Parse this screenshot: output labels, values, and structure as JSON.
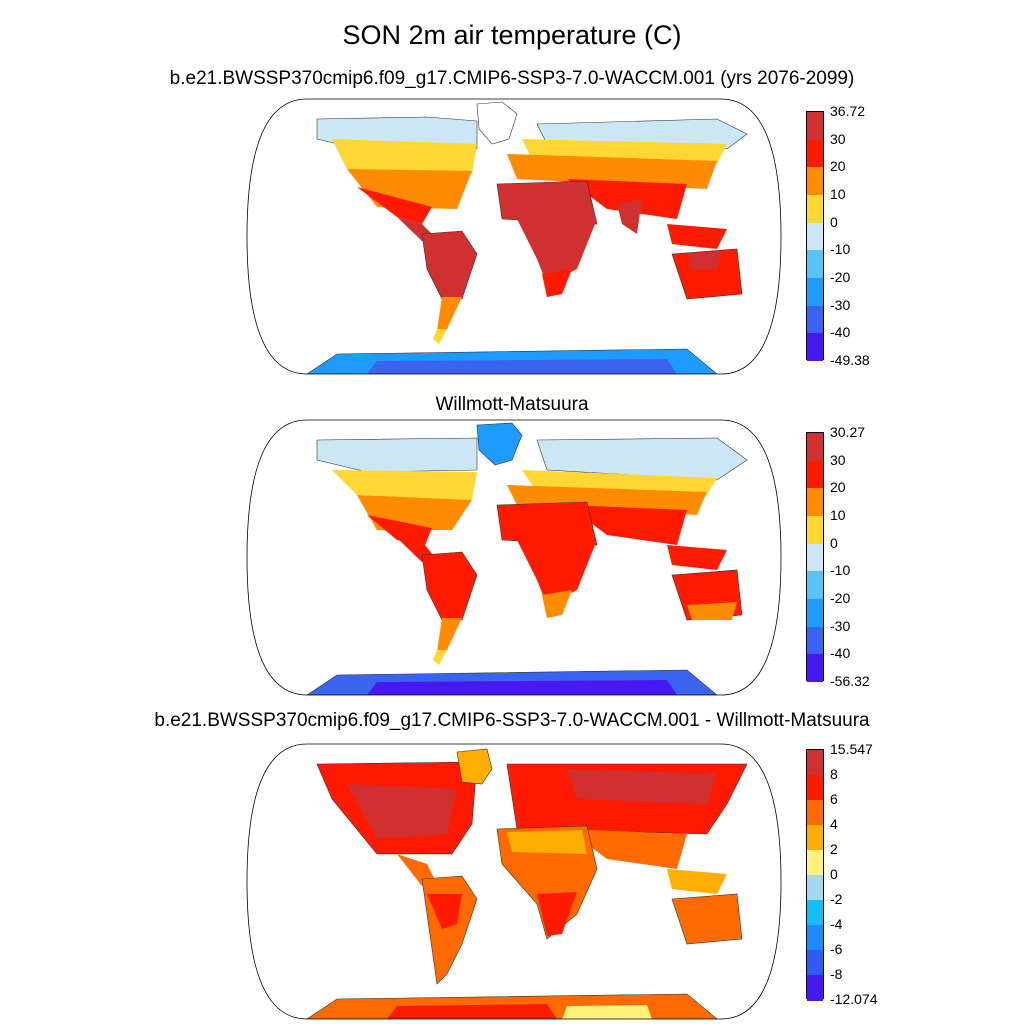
{
  "main_title": "SON 2m air temperature (C)",
  "panels": [
    {
      "title": "b.e21.BWSSP370cmip6.f09_g17.CMIP6-SSP3-7.0-WACCM.001 (yrs 2076-2099)",
      "colorbar": {
        "labels": [
          "36.72",
          "30",
          "20",
          "10",
          "0",
          "-10",
          "-20",
          "-30",
          "-40",
          "-49.38"
        ],
        "colors": [
          "#d03030",
          "#ff1a00",
          "#ff8c00",
          "#ffd733",
          "#cbe7f6",
          "#5ac3f5",
          "#1d9bff",
          "#3a64f0",
          "#4818f2"
        ]
      }
    },
    {
      "title": "Willmott-Matsuura",
      "colorbar": {
        "labels": [
          "30.27",
          "30",
          "20",
          "10",
          "0",
          "-10",
          "-20",
          "-30",
          "-40",
          "-56.32"
        ],
        "colors": [
          "#d03030",
          "#ff1a00",
          "#ff8c00",
          "#ffd733",
          "#cbe7f6",
          "#5ac3f5",
          "#1d9bff",
          "#3a64f0",
          "#4818f2"
        ]
      }
    },
    {
      "title": "b.e21.BWSSP370cmip6.f09_g17.CMIP6-SSP3-7.0-WACCM.001 - Willmott-Matsuura",
      "colorbar": {
        "labels": [
          "15.547",
          "8",
          "6",
          "4",
          "2",
          "0",
          "-2",
          "-4",
          "-6",
          "-8",
          "-12.074"
        ],
        "colors": [
          "#d03030",
          "#ff1a00",
          "#ff6a00",
          "#ffad00",
          "#fff27a",
          "#a8d8f0",
          "#12c0f5",
          "#1a8cff",
          "#2f5cf0",
          "#4818f2"
        ]
      }
    }
  ],
  "map_color_keys": {
    "panel1": {
      "tropics": "#d03030",
      "subtropics": "#ff1a00",
      "midlat": "#ff8c00",
      "highlat": "#ffd733",
      "arctic": "#cbe7f6",
      "antarctica": "#1d9bff",
      "antarctica_interior": "#3a64f0"
    },
    "panel2": {
      "tropics": "#ff1a00",
      "midlat": "#ff8c00",
      "highlat": "#ffd733",
      "arctic": "#cbe7f6",
      "greenland": "#1d9bff",
      "antarctica": "#3a64f0",
      "antarctica_interior": "#4818f2"
    },
    "panel3": {
      "high": "#d03030",
      "warm": "#ff1a00",
      "mid": "#ff6a00",
      "low": "#ffad00",
      "min": "#fff27a"
    }
  }
}
